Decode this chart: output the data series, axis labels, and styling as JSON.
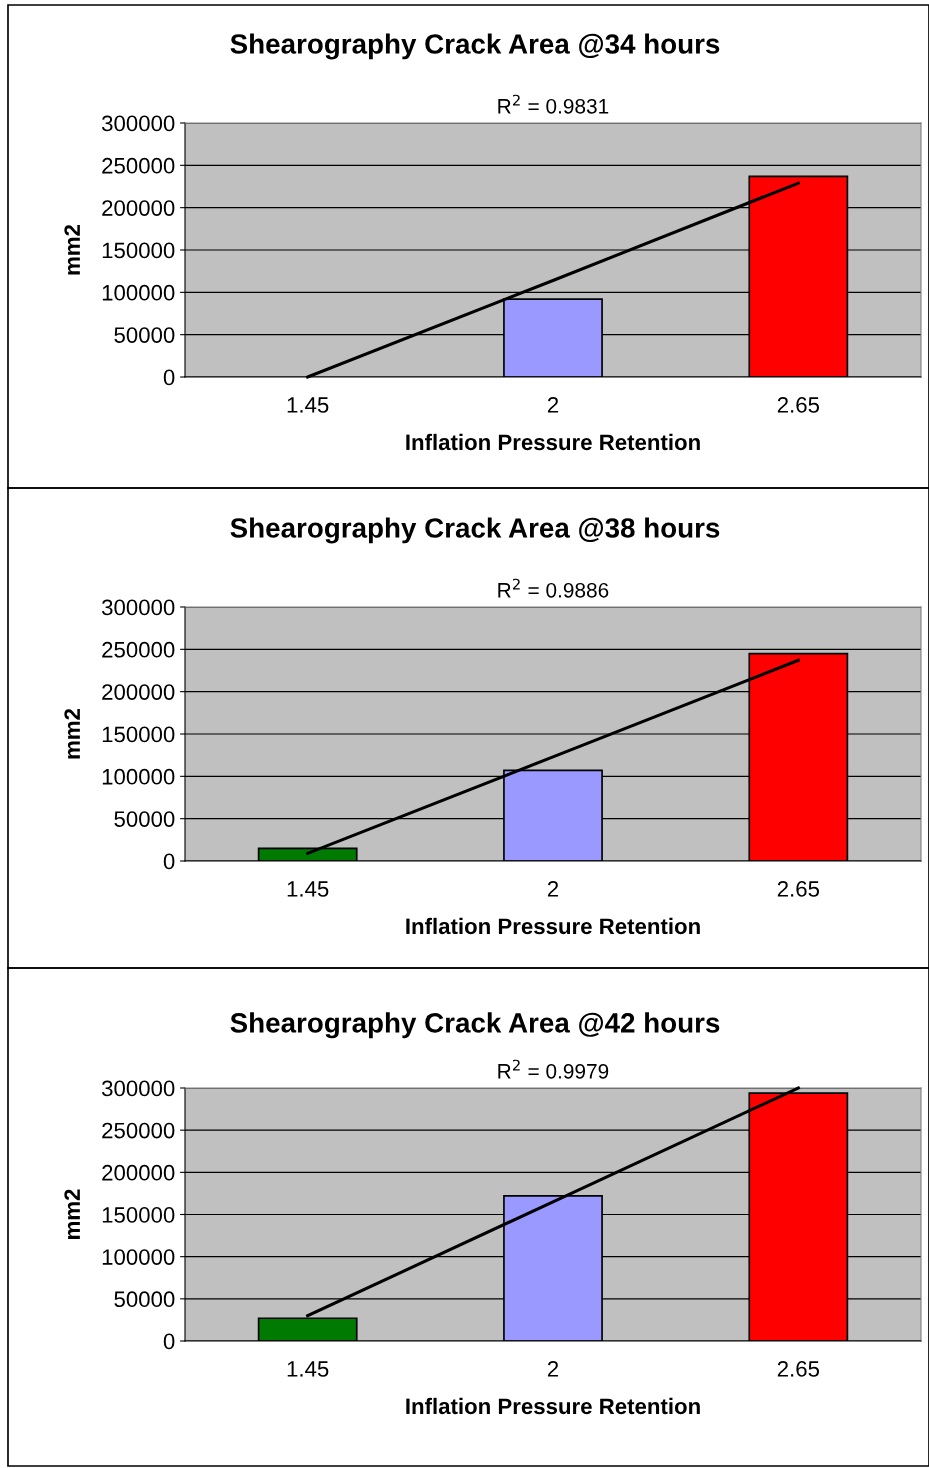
{
  "chart_data": [
    {
      "type": "bar",
      "title": "Shearography Crack Area @34 hours",
      "xlabel": "Inflation Pressure Retention",
      "ylabel": "mm2",
      "annotations": [
        "R$^{2}$ = 0.9831"
      ],
      "categories": [
        "1.45",
        "2",
        "2.65"
      ],
      "ylim": [
        0,
        300000
      ],
      "yticks": [
        0,
        50000,
        100000,
        150000,
        200000,
        250000,
        300000
      ],
      "grid": "y",
      "legend": false,
      "series": [
        {
          "colors": [
            null,
            "#9999ff",
            "#ff0000"
          ],
          "values": [
            null,
            92000,
            237000
          ]
        },
        {
          "type": "line",
          "color": "#000000",
          "x": [
            "1.45",
            "2",
            "2.65"
          ],
          "values": [
            0,
            114000,
            229000
          ]
        }
      ]
    },
    {
      "type": "bar",
      "title": "Shearography Crack Area @38 hours",
      "xlabel": "Inflation Pressure Retention",
      "ylabel": "mm2",
      "annotations": [
        "R$^{2}$ = 0.9886"
      ],
      "categories": [
        "1.45",
        "2",
        "2.65"
      ],
      "ylim": [
        0,
        300000
      ],
      "yticks": [
        0,
        50000,
        100000,
        150000,
        200000,
        250000,
        300000
      ],
      "grid": "y",
      "legend": false,
      "series": [
        {
          "colors": [
            "#007a00",
            "#9999ff",
            "#ff0000"
          ],
          "values": [
            15000,
            107000,
            245000
          ]
        },
        {
          "type": "line",
          "color": "#000000",
          "x": [
            "1.45",
            "2",
            "2.65"
          ],
          "values": [
            9000,
            123000,
            237000
          ]
        }
      ]
    },
    {
      "type": "bar",
      "title": "Shearography Crack Area @42 hours",
      "xlabel": "Inflation Pressure Retention",
      "ylabel": "mm2",
      "annotations": [
        "R$^{2}$ = 0.9979"
      ],
      "categories": [
        "1.45",
        "2",
        "2.65"
      ],
      "ylim": [
        0,
        300000
      ],
      "yticks": [
        0,
        50000,
        100000,
        150000,
        200000,
        250000,
        300000
      ],
      "grid": "y",
      "legend": false,
      "series": [
        {
          "colors": [
            "#007a00",
            "#9999ff",
            "#ff0000"
          ],
          "values": [
            27000,
            172000,
            294000
          ]
        },
        {
          "type": "line",
          "color": "#000000",
          "x": [
            "1.45",
            "2",
            "2.65"
          ],
          "values": [
            30000,
            165000,
            300000
          ]
        }
      ]
    }
  ]
}
